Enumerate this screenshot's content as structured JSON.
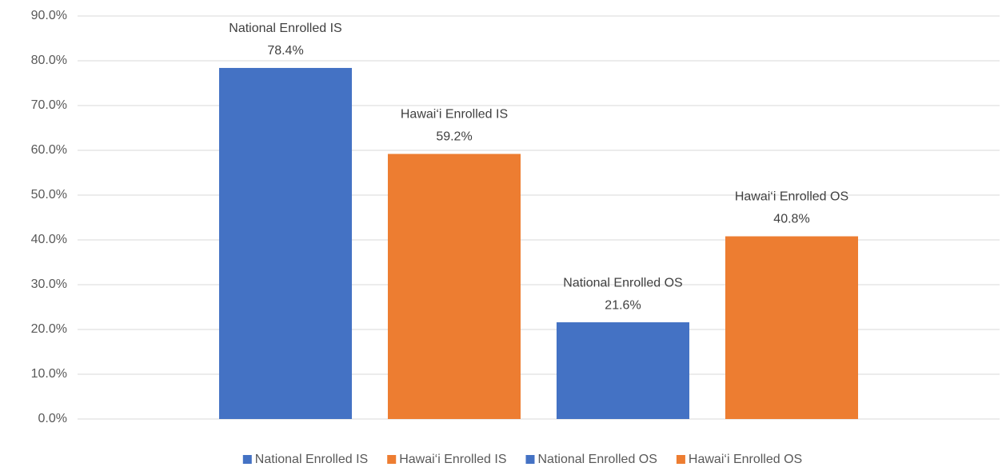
{
  "chart_data": {
    "type": "bar",
    "categories": [
      null
    ],
    "series": [
      {
        "name": "National Enrolled IS",
        "color": "#4472c4",
        "values": [
          78.4
        ],
        "value_labels": [
          "78.4%"
        ]
      },
      {
        "name": "Hawai‘i Enrolled IS",
        "color": "#ed7d31",
        "values": [
          59.2
        ],
        "value_labels": [
          "59.2%"
        ]
      },
      {
        "name": "National Enrolled OS",
        "color": "#4472c4",
        "values": [
          21.6
        ],
        "value_labels": [
          "21.6%"
        ]
      },
      {
        "name": "Hawai‘i Enrolled OS",
        "color": "#ed7d31",
        "values": [
          40.8
        ],
        "value_labels": [
          "40.8%"
        ]
      }
    ],
    "ylim": [
      0,
      90
    ],
    "yticks": [
      {
        "value": 0,
        "label": "0.0%"
      },
      {
        "value": 10,
        "label": "10.0%"
      },
      {
        "value": 20,
        "label": "20.0%"
      },
      {
        "value": 30,
        "label": "30.0%"
      },
      {
        "value": 40,
        "label": "40.0%"
      },
      {
        "value": 50,
        "label": "50.0%"
      },
      {
        "value": 60,
        "label": "60.0%"
      },
      {
        "value": 70,
        "label": "70.0%"
      },
      {
        "value": 80,
        "label": "80.0%"
      },
      {
        "value": 90,
        "label": "90.0%"
      }
    ],
    "grid": true,
    "legend": "bottom"
  }
}
